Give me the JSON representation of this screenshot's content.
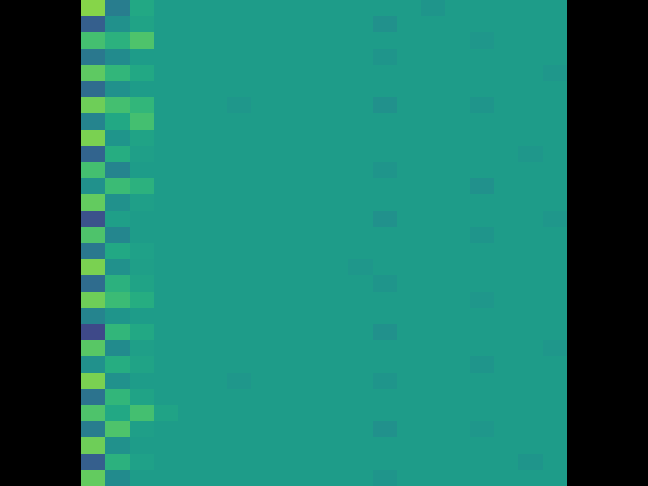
{
  "chart_data": {
    "type": "heatmap",
    "tick_labels": false,
    "zlim": [
      0,
      1
    ],
    "z": [
      [
        0.82,
        0.42,
        0.6,
        0.55,
        0.55,
        0.55,
        0.55,
        0.55,
        0.55,
        0.55,
        0.55,
        0.55,
        0.55,
        0.55,
        0.52,
        0.55,
        0.55,
        0.55,
        0.55,
        0.55
      ],
      [
        0.3,
        0.5,
        0.58,
        0.55,
        0.55,
        0.55,
        0.55,
        0.55,
        0.55,
        0.55,
        0.55,
        0.55,
        0.5,
        0.55,
        0.55,
        0.55,
        0.55,
        0.55,
        0.55,
        0.55
      ],
      [
        0.7,
        0.64,
        0.72,
        0.55,
        0.55,
        0.55,
        0.55,
        0.55,
        0.55,
        0.55,
        0.55,
        0.55,
        0.55,
        0.55,
        0.55,
        0.55,
        0.53,
        0.55,
        0.55,
        0.55
      ],
      [
        0.4,
        0.48,
        0.55,
        0.55,
        0.55,
        0.55,
        0.55,
        0.55,
        0.55,
        0.55,
        0.55,
        0.55,
        0.52,
        0.55,
        0.55,
        0.55,
        0.55,
        0.55,
        0.55,
        0.55
      ],
      [
        0.75,
        0.66,
        0.6,
        0.55,
        0.55,
        0.55,
        0.55,
        0.55,
        0.55,
        0.55,
        0.55,
        0.55,
        0.55,
        0.55,
        0.55,
        0.55,
        0.55,
        0.55,
        0.55,
        0.53
      ],
      [
        0.35,
        0.5,
        0.55,
        0.55,
        0.55,
        0.55,
        0.55,
        0.55,
        0.55,
        0.55,
        0.55,
        0.55,
        0.55,
        0.55,
        0.55,
        0.55,
        0.55,
        0.55,
        0.55,
        0.55
      ],
      [
        0.78,
        0.7,
        0.66,
        0.55,
        0.55,
        0.55,
        0.53,
        0.55,
        0.55,
        0.55,
        0.55,
        0.55,
        0.5,
        0.55,
        0.55,
        0.55,
        0.52,
        0.55,
        0.55,
        0.55
      ],
      [
        0.45,
        0.6,
        0.7,
        0.55,
        0.55,
        0.55,
        0.55,
        0.55,
        0.55,
        0.55,
        0.55,
        0.55,
        0.55,
        0.55,
        0.55,
        0.55,
        0.55,
        0.55,
        0.55,
        0.55
      ],
      [
        0.8,
        0.52,
        0.58,
        0.55,
        0.55,
        0.55,
        0.55,
        0.55,
        0.55,
        0.55,
        0.55,
        0.55,
        0.55,
        0.55,
        0.55,
        0.55,
        0.55,
        0.55,
        0.55,
        0.55
      ],
      [
        0.32,
        0.62,
        0.56,
        0.55,
        0.55,
        0.55,
        0.55,
        0.55,
        0.55,
        0.55,
        0.55,
        0.55,
        0.55,
        0.55,
        0.55,
        0.55,
        0.55,
        0.55,
        0.53,
        0.55
      ],
      [
        0.7,
        0.45,
        0.55,
        0.55,
        0.55,
        0.55,
        0.55,
        0.55,
        0.55,
        0.55,
        0.55,
        0.55,
        0.52,
        0.55,
        0.55,
        0.55,
        0.55,
        0.55,
        0.55,
        0.55
      ],
      [
        0.5,
        0.68,
        0.64,
        0.55,
        0.55,
        0.55,
        0.55,
        0.55,
        0.55,
        0.55,
        0.55,
        0.55,
        0.55,
        0.55,
        0.55,
        0.55,
        0.5,
        0.55,
        0.55,
        0.55
      ],
      [
        0.76,
        0.5,
        0.56,
        0.55,
        0.55,
        0.55,
        0.55,
        0.55,
        0.55,
        0.55,
        0.55,
        0.55,
        0.55,
        0.55,
        0.55,
        0.55,
        0.55,
        0.55,
        0.55,
        0.55
      ],
      [
        0.25,
        0.56,
        0.55,
        0.55,
        0.55,
        0.55,
        0.55,
        0.55,
        0.55,
        0.55,
        0.55,
        0.55,
        0.5,
        0.55,
        0.55,
        0.55,
        0.55,
        0.55,
        0.55,
        0.53
      ],
      [
        0.72,
        0.46,
        0.55,
        0.55,
        0.55,
        0.55,
        0.55,
        0.55,
        0.55,
        0.55,
        0.55,
        0.55,
        0.55,
        0.55,
        0.55,
        0.55,
        0.52,
        0.55,
        0.55,
        0.55
      ],
      [
        0.4,
        0.6,
        0.57,
        0.55,
        0.55,
        0.55,
        0.55,
        0.55,
        0.55,
        0.55,
        0.55,
        0.55,
        0.55,
        0.55,
        0.55,
        0.55,
        0.55,
        0.55,
        0.55,
        0.55
      ],
      [
        0.8,
        0.5,
        0.56,
        0.55,
        0.55,
        0.55,
        0.55,
        0.55,
        0.55,
        0.55,
        0.55,
        0.53,
        0.55,
        0.55,
        0.55,
        0.55,
        0.55,
        0.55,
        0.55,
        0.55
      ],
      [
        0.35,
        0.64,
        0.58,
        0.55,
        0.55,
        0.55,
        0.55,
        0.55,
        0.55,
        0.55,
        0.55,
        0.55,
        0.52,
        0.55,
        0.55,
        0.55,
        0.55,
        0.55,
        0.55,
        0.55
      ],
      [
        0.78,
        0.68,
        0.62,
        0.55,
        0.55,
        0.55,
        0.55,
        0.55,
        0.55,
        0.55,
        0.55,
        0.55,
        0.55,
        0.55,
        0.55,
        0.55,
        0.53,
        0.55,
        0.55,
        0.55
      ],
      [
        0.45,
        0.52,
        0.55,
        0.55,
        0.55,
        0.55,
        0.55,
        0.55,
        0.55,
        0.55,
        0.55,
        0.55,
        0.55,
        0.55,
        0.55,
        0.55,
        0.55,
        0.55,
        0.55,
        0.55
      ],
      [
        0.22,
        0.66,
        0.6,
        0.55,
        0.55,
        0.55,
        0.55,
        0.55,
        0.55,
        0.55,
        0.55,
        0.55,
        0.5,
        0.55,
        0.55,
        0.55,
        0.55,
        0.55,
        0.55,
        0.55
      ],
      [
        0.74,
        0.48,
        0.56,
        0.55,
        0.55,
        0.55,
        0.55,
        0.55,
        0.55,
        0.55,
        0.55,
        0.55,
        0.55,
        0.55,
        0.55,
        0.55,
        0.55,
        0.55,
        0.55,
        0.53
      ],
      [
        0.5,
        0.62,
        0.58,
        0.55,
        0.55,
        0.55,
        0.55,
        0.55,
        0.55,
        0.55,
        0.55,
        0.55,
        0.55,
        0.55,
        0.55,
        0.55,
        0.52,
        0.55,
        0.55,
        0.55
      ],
      [
        0.8,
        0.5,
        0.55,
        0.55,
        0.55,
        0.55,
        0.53,
        0.55,
        0.55,
        0.55,
        0.55,
        0.55,
        0.52,
        0.55,
        0.55,
        0.55,
        0.55,
        0.55,
        0.55,
        0.55
      ],
      [
        0.38,
        0.66,
        0.58,
        0.55,
        0.55,
        0.55,
        0.55,
        0.55,
        0.55,
        0.55,
        0.55,
        0.55,
        0.55,
        0.55,
        0.55,
        0.55,
        0.55,
        0.55,
        0.55,
        0.55
      ],
      [
        0.72,
        0.6,
        0.7,
        0.58,
        0.55,
        0.55,
        0.55,
        0.55,
        0.55,
        0.55,
        0.55,
        0.55,
        0.55,
        0.55,
        0.55,
        0.55,
        0.55,
        0.55,
        0.55,
        0.55
      ],
      [
        0.42,
        0.72,
        0.56,
        0.55,
        0.55,
        0.55,
        0.55,
        0.55,
        0.55,
        0.55,
        0.55,
        0.55,
        0.5,
        0.55,
        0.55,
        0.55,
        0.53,
        0.55,
        0.55,
        0.55
      ],
      [
        0.78,
        0.5,
        0.55,
        0.55,
        0.55,
        0.55,
        0.55,
        0.55,
        0.55,
        0.55,
        0.55,
        0.55,
        0.55,
        0.55,
        0.55,
        0.55,
        0.55,
        0.55,
        0.55,
        0.55
      ],
      [
        0.3,
        0.64,
        0.57,
        0.55,
        0.55,
        0.55,
        0.55,
        0.55,
        0.55,
        0.55,
        0.55,
        0.55,
        0.55,
        0.55,
        0.55,
        0.55,
        0.55,
        0.55,
        0.52,
        0.55
      ],
      [
        0.76,
        0.48,
        0.55,
        0.55,
        0.55,
        0.55,
        0.55,
        0.55,
        0.55,
        0.55,
        0.55,
        0.55,
        0.52,
        0.55,
        0.55,
        0.55,
        0.55,
        0.55,
        0.55,
        0.55
      ]
    ]
  }
}
